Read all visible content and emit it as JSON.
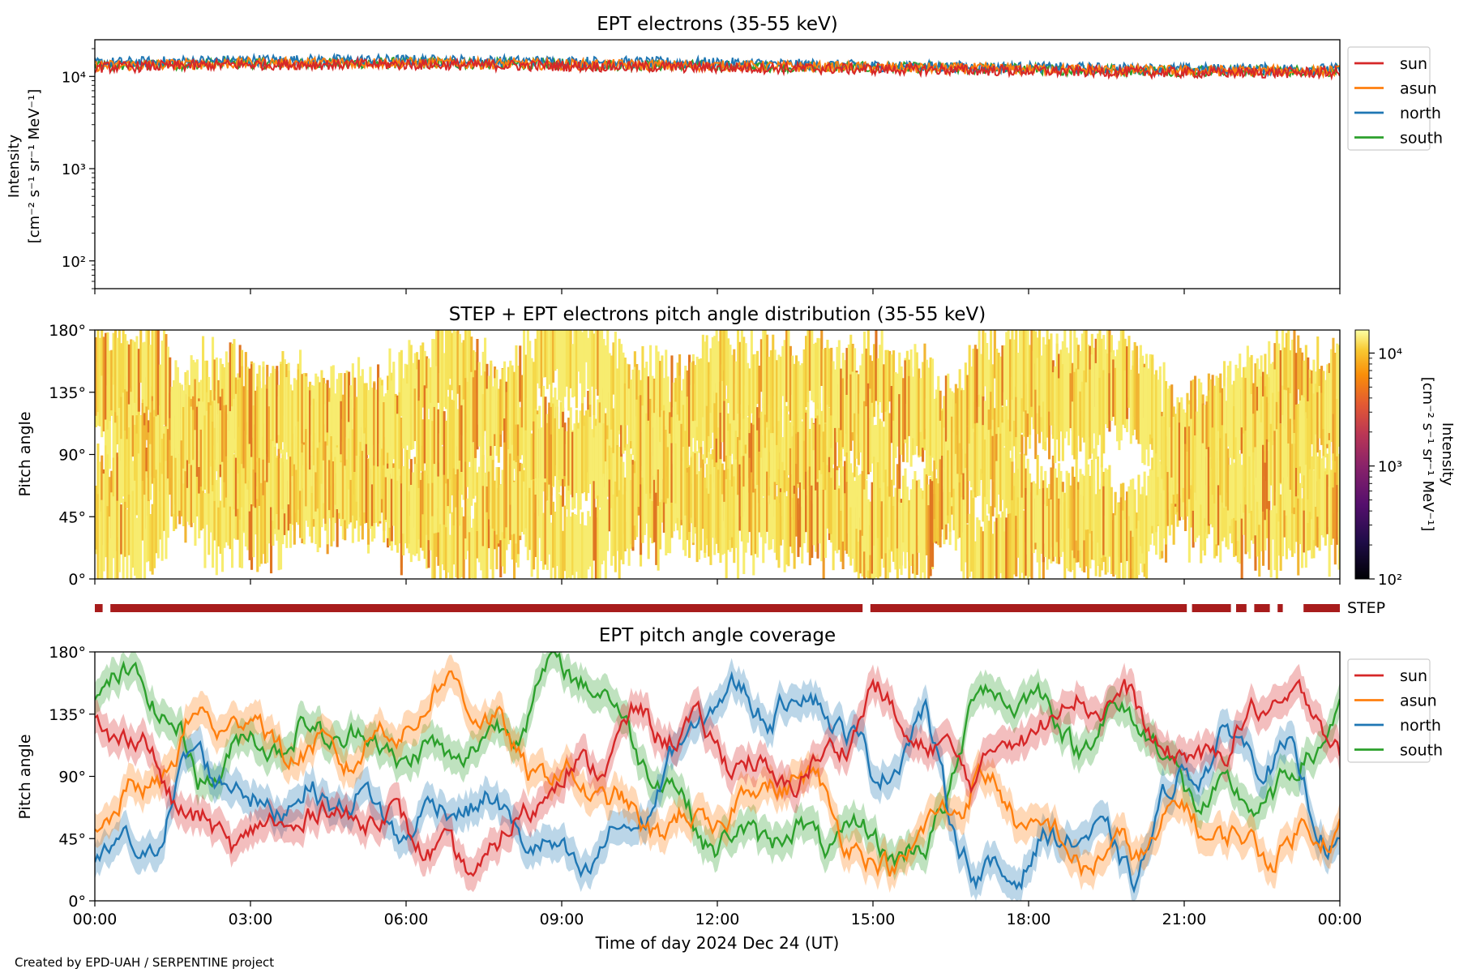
{
  "footer": {
    "credit": "Created by EPD-UAH / SERPENTINE project"
  },
  "colors": {
    "sun": "#d62728",
    "asun": "#ff7f0e",
    "north": "#1f77b4",
    "south": "#2ca02c",
    "step_bar": "#a81c1c"
  },
  "chart_data": [
    {
      "type": "line",
      "title": "EPT electrons (35-55 keV)",
      "ylabel_line1": "Intensity",
      "ylabel_line2": "[cm⁻² s⁻¹ sr⁻¹ MeV⁻¹]",
      "y_scale": "log",
      "ylim": [
        50,
        25000
      ],
      "ytick_labels": [
        "10²",
        "10³",
        "10⁴"
      ],
      "ytick_values": [
        100,
        1000,
        10000
      ],
      "xlim_hours": [
        0,
        24
      ],
      "legend": {
        "placement": "outside-right",
        "entries": [
          "sun",
          "asun",
          "north",
          "south"
        ]
      },
      "series": [
        {
          "name": "sun",
          "x_hours": [
            0,
            3,
            6,
            9,
            12,
            15,
            18,
            21,
            24
          ],
          "values": [
            12500,
            13500,
            13500,
            13000,
            12500,
            12000,
            11500,
            11000,
            11000
          ]
        },
        {
          "name": "asun",
          "x_hours": [
            0,
            3,
            6,
            9,
            12,
            15,
            18,
            21,
            24
          ],
          "values": [
            13000,
            14000,
            14000,
            13500,
            13000,
            12500,
            12000,
            11500,
            11500
          ]
        },
        {
          "name": "north",
          "x_hours": [
            0,
            3,
            6,
            9,
            12,
            15,
            18,
            21,
            24
          ],
          "values": [
            14000,
            15000,
            15000,
            14500,
            14000,
            13000,
            12500,
            12000,
            12000
          ]
        },
        {
          "name": "south",
          "x_hours": [
            0,
            3,
            6,
            9,
            12,
            15,
            18,
            21,
            24
          ],
          "values": [
            13000,
            14000,
            14000,
            13500,
            13000,
            12500,
            12000,
            11500,
            11500
          ]
        }
      ]
    },
    {
      "type": "heatmap",
      "title": "STEP + EPT electrons pitch angle distribution (35-55 keV)",
      "ylabel": "Pitch angle",
      "ylim": [
        0,
        180
      ],
      "ytick_labels": [
        "0°",
        "45°",
        "90°",
        "135°",
        "180°"
      ],
      "ytick_values": [
        0,
        45,
        90,
        135,
        180
      ],
      "xlim_hours": [
        0,
        24
      ],
      "colorbar": {
        "label_line1": "Intensity",
        "label_line2": "[cm⁻² s⁻¹ sr⁻¹ MeV⁻¹]",
        "scale": "log",
        "range": [
          100,
          16000
        ],
        "tick_labels": [
          "10²",
          "10³",
          "10⁴"
        ],
        "tick_values": [
          100,
          1000,
          10000
        ]
      }
    },
    {
      "type": "bar",
      "label": "STEP",
      "description_segments_hours": [
        [
          0,
          0.15
        ],
        [
          0.3,
          14.8
        ],
        [
          14.95,
          21.05
        ],
        [
          21.15,
          21.9
        ],
        [
          22.0,
          22.2
        ],
        [
          22.35,
          22.65
        ],
        [
          22.8,
          22.9
        ],
        [
          23.3,
          24
        ]
      ]
    },
    {
      "type": "line",
      "title": "EPT pitch angle coverage",
      "ylabel": "Pitch angle",
      "ylim": [
        0,
        180
      ],
      "ytick_labels": [
        "0°",
        "45°",
        "90°",
        "135°",
        "180°"
      ],
      "ytick_values": [
        0,
        45,
        90,
        135,
        180
      ],
      "xlim_hours": [
        0,
        24
      ],
      "xlabel": "Time of day 2024 Dec 24 (UT)",
      "xtick_labels": [
        "00:00",
        "03:00",
        "06:00",
        "09:00",
        "12:00",
        "15:00",
        "18:00",
        "21:00",
        "00:00"
      ],
      "xtick_hours": [
        0,
        3,
        6,
        9,
        12,
        15,
        18,
        21,
        24
      ],
      "legend": {
        "placement": "outside-right",
        "entries": [
          "sun",
          "asun",
          "north",
          "south"
        ]
      },
      "series": [
        {
          "name": "sun",
          "x_hours": [
            0,
            1,
            2,
            3,
            4,
            5,
            6,
            7,
            8,
            8.8,
            9.5,
            10.5,
            12,
            13,
            14,
            15,
            16,
            17,
            18,
            19,
            20,
            21,
            22,
            23,
            24
          ],
          "values": [
            130,
            110,
            50,
            45,
            60,
            65,
            55,
            20,
            45,
            92,
            95,
            130,
            115,
            85,
            95,
            150,
            110,
            95,
            125,
            150,
            140,
            95,
            120,
            150,
            115
          ]
        },
        {
          "name": "asun",
          "x_hours": [
            0,
            1,
            2,
            3,
            4,
            5,
            6,
            7,
            8,
            8.8,
            9.5,
            10.5,
            12,
            13,
            14,
            15,
            16,
            17,
            18,
            19,
            20,
            21,
            22,
            23,
            24
          ],
          "values": [
            55,
            80,
            130,
            130,
            105,
            105,
            130,
            160,
            110,
            88,
            85,
            55,
            55,
            90,
            80,
            20,
            45,
            90,
            55,
            30,
            35,
            65,
            40,
            40,
            60
          ]
        },
        {
          "name": "north",
          "x_hours": [
            0,
            1,
            2,
            3,
            4,
            5,
            6,
            7,
            8,
            8.8,
            9.5,
            10.5,
            12,
            13,
            14,
            15,
            16,
            17,
            18,
            19,
            20,
            21,
            22,
            23,
            24
          ],
          "values": [
            30,
            35,
            110,
            70,
            75,
            75,
            50,
            75,
            60,
            30,
            25,
            60,
            150,
            140,
            150,
            90,
            130,
            10,
            30,
            55,
            20,
            95,
            115,
            100,
            35
          ]
        },
        {
          "name": "south",
          "x_hours": [
            0,
            1,
            2,
            3,
            4,
            5,
            6,
            7,
            8,
            8.8,
            9.5,
            10.5,
            12,
            13,
            14,
            15,
            16,
            17,
            18,
            19,
            20,
            21,
            22,
            23,
            24
          ],
          "values": [
            150,
            160,
            90,
            115,
            120,
            120,
            105,
            105,
            125,
            165,
            165,
            110,
            40,
            50,
            45,
            45,
            30,
            150,
            150,
            115,
            140,
            80,
            70,
            80,
            145
          ]
        }
      ]
    }
  ]
}
